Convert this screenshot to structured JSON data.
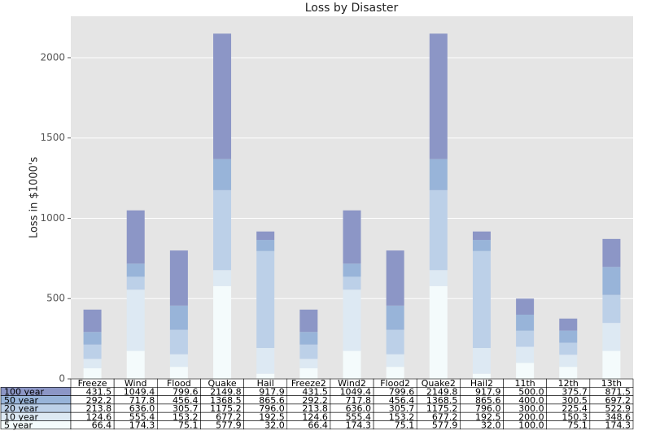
{
  "chart_data": {
    "type": "stacked_bar_table",
    "title": "Loss by Disaster",
    "y_label": "Loss in $1000's",
    "categories": [
      "Freeze",
      "Wind",
      "Flood",
      "Quake",
      "Hail",
      "Freeze2",
      "Wind2",
      "Flood2",
      "Quake2",
      "Hail2",
      "11th",
      "12th",
      "13th"
    ],
    "series": [
      {
        "name": "100 year",
        "color": "#8c96c6",
        "values": [
          139.3,
          331.6,
          343.2,
          781.3,
          52.3,
          139.3,
          331.6,
          343.2,
          781.3,
          52.3,
          100.0,
          75.2,
          174.3
        ]
      },
      {
        "name": "50 year",
        "color": "#98b4d9",
        "values": [
          78.4,
          81.8,
          150.7,
          193.3,
          69.6,
          78.4,
          81.8,
          150.7,
          193.3,
          69.6,
          100.0,
          75.1,
          174.3
        ]
      },
      {
        "name": "20 year",
        "color": "#bcd0e8",
        "values": [
          89.2,
          80.6,
          152.5,
          498.0,
          603.5,
          89.2,
          80.6,
          152.5,
          498.0,
          603.5,
          100.0,
          75.1,
          174.3
        ]
      },
      {
        "name": "10 year",
        "color": "#dde9f3",
        "values": [
          58.2,
          381.1,
          78.1,
          99.3,
          160.5,
          58.2,
          381.1,
          78.1,
          99.3,
          160.5,
          100.0,
          75.2,
          174.3
        ]
      },
      {
        "name": "5 year",
        "color": "#f4fbfc",
        "values": [
          66.4,
          174.3,
          75.1,
          577.9,
          32.0,
          66.4,
          174.3,
          75.1,
          577.9,
          32.0,
          100.0,
          75.1,
          174.3
        ]
      }
    ],
    "table": {
      "rows": [
        [
          "431.5",
          "1049.4",
          "799.6",
          "2149.8",
          "917.9",
          "431.5",
          "1049.4",
          "799.6",
          "2149.8",
          "917.9",
          "500.0",
          "375.7",
          "871.5"
        ],
        [
          "292.2",
          "717.8",
          "456.4",
          "1368.5",
          "865.6",
          "292.2",
          "717.8",
          "456.4",
          "1368.5",
          "865.6",
          "400.0",
          "300.5",
          "697.2"
        ],
        [
          "213.8",
          "636.0",
          "305.7",
          "1175.2",
          "796.0",
          "213.8",
          "636.0",
          "305.7",
          "1175.2",
          "796.0",
          "300.0",
          "225.4",
          "522.9"
        ],
        [
          "124.6",
          "555.4",
          "153.2",
          "677.2",
          "192.5",
          "124.6",
          "555.4",
          "153.2",
          "677.2",
          "192.5",
          "200.0",
          "150.3",
          "348.6"
        ],
        [
          "66.4",
          "174.3",
          "75.1",
          "577.9",
          "32.0",
          "66.4",
          "174.3",
          "75.1",
          "577.9",
          "32.0",
          "100.0",
          "75.1",
          "174.3"
        ]
      ]
    },
    "ylim": [
      0,
      2258
    ],
    "yticks": [
      0,
      500,
      1000,
      1500,
      2000
    ],
    "grid": true,
    "background": "#e5e5e5"
  }
}
